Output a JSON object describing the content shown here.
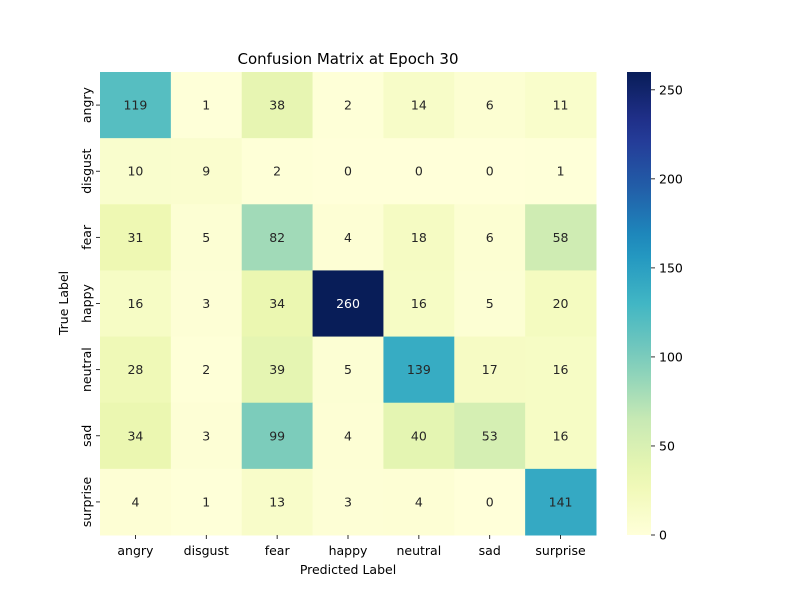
{
  "chart_data": {
    "type": "heatmap",
    "title": "Confusion Matrix at Epoch 30",
    "xlabel": "Predicted Label",
    "ylabel": "True Label",
    "x_categories": [
      "angry",
      "disgust",
      "fear",
      "happy",
      "neutral",
      "sad",
      "surprise"
    ],
    "y_categories": [
      "angry",
      "disgust",
      "fear",
      "happy",
      "neutral",
      "sad",
      "surprise"
    ],
    "values": [
      [
        119,
        1,
        38,
        2,
        14,
        6,
        11
      ],
      [
        10,
        9,
        2,
        0,
        0,
        0,
        1
      ],
      [
        31,
        5,
        82,
        4,
        18,
        6,
        58
      ],
      [
        16,
        3,
        34,
        260,
        16,
        5,
        20
      ],
      [
        28,
        2,
        39,
        5,
        139,
        17,
        16
      ],
      [
        34,
        3,
        99,
        4,
        40,
        53,
        16
      ],
      [
        4,
        1,
        13,
        3,
        4,
        0,
        141
      ]
    ],
    "colormap": "YlGnBu",
    "value_range": [
      0,
      260
    ],
    "colorbar_ticks": [
      0,
      50,
      100,
      150,
      200,
      250
    ]
  }
}
